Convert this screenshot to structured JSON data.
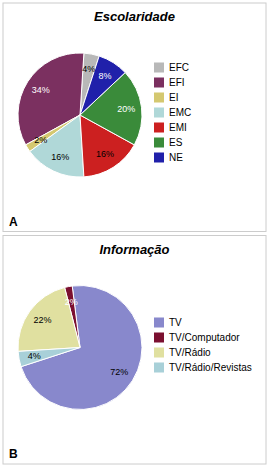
{
  "chart_data": [
    {
      "type": "pie",
      "title": "Escolaridade",
      "categories": [
        "EFC",
        "EFI",
        "EI",
        "EMC",
        "EMI",
        "ES",
        "NE"
      ],
      "values": [
        4,
        34,
        2,
        16,
        16,
        20,
        8
      ],
      "value_labels": [
        "4%",
        "34%",
        "2%",
        "16%",
        "16%",
        "20%",
        "8%"
      ],
      "colors": [
        "#b8b8b8",
        "#7B3060",
        "#d4c870",
        "#b0d8d8",
        "#cc2020",
        "#3a8b3a",
        "#2020aa"
      ],
      "data_labels": true,
      "legend": "right",
      "annotations": [
        "A"
      ]
    },
    {
      "type": "pie",
      "title": "Informação",
      "categories": [
        "TV",
        "TV/Computador",
        "TV/Rádio",
        "TV/Rádio/Revistas"
      ],
      "values": [
        72,
        2,
        22,
        4
      ],
      "value_labels": [
        "72%",
        "2%",
        "22%",
        "4%"
      ],
      "colors": [
        "#8888cc",
        "#7B1030",
        "#e0e0a0",
        "#a8d0d8"
      ],
      "data_labels": true,
      "legend": "right",
      "annotations": [
        "B"
      ]
    }
  ]
}
